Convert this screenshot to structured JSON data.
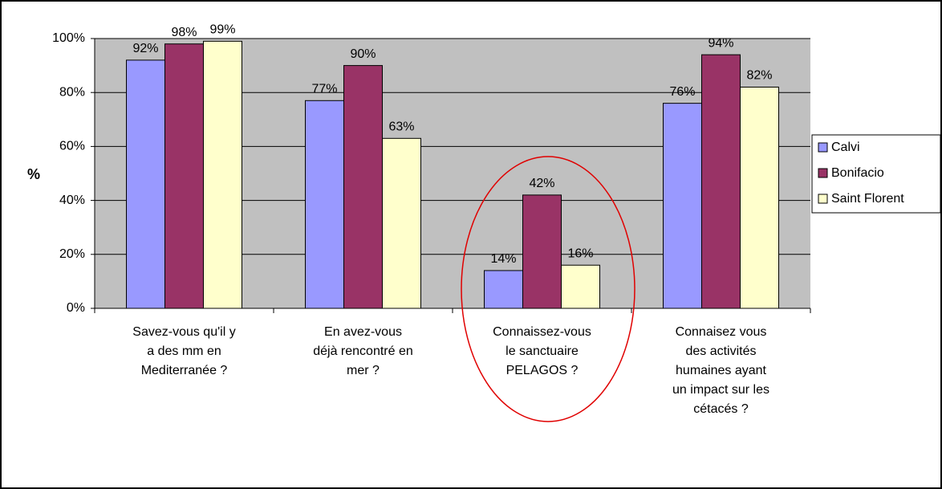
{
  "chart_data": {
    "type": "bar",
    "y_label": "%",
    "categories": [
      "Savez-vous qu'il y a des mm en Mediterranée ?",
      "En avez-vous déjà rencontré en mer ?",
      "Connaissez-vous le sanctuaire PELAGOS ?",
      "Connaisez vous des activités humaines ayant un impact sur les cétacés ?"
    ],
    "series": [
      {
        "name": "Calvi",
        "color": "#9999ff",
        "values": [
          92,
          77,
          14,
          76
        ],
        "value_labels": [
          "92%",
          "77%",
          "14%",
          "76%"
        ]
      },
      {
        "name": "Bonifacio",
        "color": "#993366",
        "values": [
          98,
          90,
          42,
          94
        ],
        "value_labels": [
          "98%",
          "90%",
          "42%",
          "94%"
        ]
      },
      {
        "name": "Saint Florent",
        "color": "#ffffcc",
        "values": [
          99,
          63,
          16,
          82
        ],
        "value_labels": [
          "99%",
          "63%",
          "16%",
          "82%"
        ]
      }
    ],
    "ylim": [
      0,
      100
    ],
    "yticks": [
      {
        "value": 0,
        "label": "0%"
      },
      {
        "value": 20,
        "label": "20%"
      },
      {
        "value": 40,
        "label": "40%"
      },
      {
        "value": 60,
        "label": "60%"
      },
      {
        "value": 80,
        "label": "80%"
      },
      {
        "value": 100,
        "label": "100%"
      }
    ],
    "grid": true,
    "legend": "right"
  }
}
